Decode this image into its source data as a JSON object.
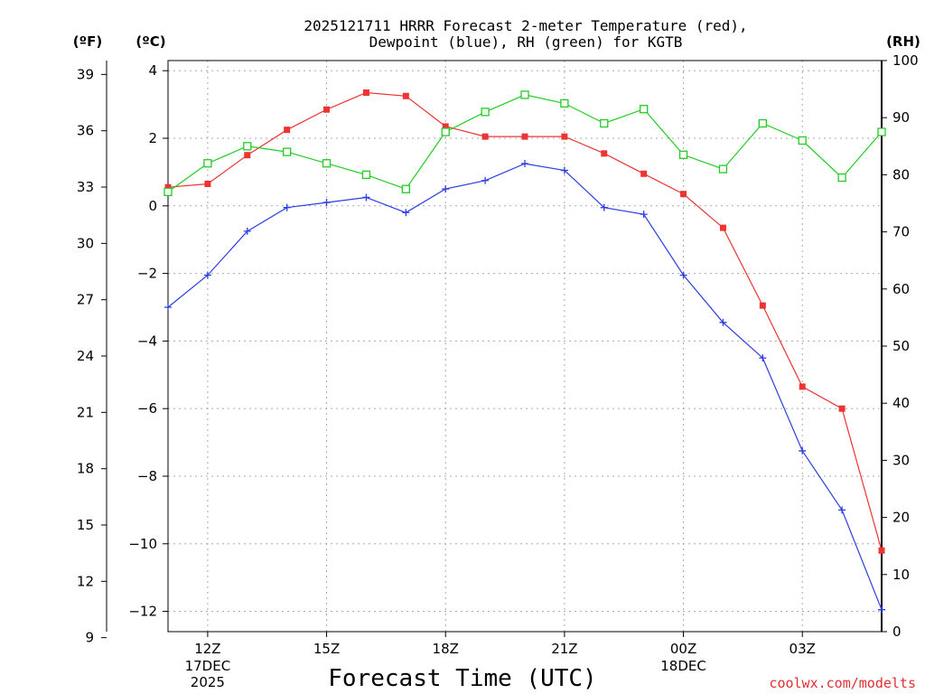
{
  "chart_data": {
    "type": "line",
    "title_line1": "2025121711 HRRR Forecast 2-meter Temperature (red),",
    "title_line2": "Dewpoint (blue), RH (green) for KGTB",
    "xlabel": "Forecast Time (UTC)",
    "credit": "coolwx.com/modelts",
    "units": {
      "fahrenheit": "(ºF)",
      "celsius": "(ºC)",
      "rh": "(RH)"
    },
    "x_hours": [
      11,
      12,
      13,
      14,
      15,
      16,
      17,
      18,
      19,
      20,
      21,
      22,
      23,
      24,
      25,
      26,
      27,
      28,
      29
    ],
    "x_range": [
      11,
      29
    ],
    "x_ticks": [
      {
        "hour": 12,
        "label": "12Z",
        "sub1": "17DEC",
        "sub2": "2025"
      },
      {
        "hour": 15,
        "label": "15Z",
        "sub1": "",
        "sub2": ""
      },
      {
        "hour": 18,
        "label": "18Z",
        "sub1": "",
        "sub2": ""
      },
      {
        "hour": 21,
        "label": "21Z",
        "sub1": "",
        "sub2": ""
      },
      {
        "hour": 24,
        "label": "00Z",
        "sub1": "18DEC",
        "sub2": ""
      },
      {
        "hour": 27,
        "label": "03Z",
        "sub1": "",
        "sub2": ""
      }
    ],
    "celsius_range": [
      -12.6,
      4.3
    ],
    "celsius_ticks": [
      "4",
      "2",
      "0",
      "−2",
      "−4",
      "−6",
      "−8",
      "−10",
      "−12"
    ],
    "celsius_tick_values": [
      4,
      2,
      0,
      -2,
      -4,
      -6,
      -8,
      -10,
      -12
    ],
    "fahrenheit_ticks": [
      "39",
      "36",
      "33",
      "30",
      "27",
      "24",
      "21",
      "18",
      "15",
      "12",
      "9"
    ],
    "fahrenheit_tick_values": [
      39,
      36,
      33,
      30,
      27,
      24,
      21,
      18,
      15,
      12,
      9
    ],
    "rh_range": [
      0,
      100
    ],
    "rh_ticks": [
      "100",
      "90",
      "80",
      "70",
      "60",
      "50",
      "40",
      "30",
      "20",
      "10",
      "0"
    ],
    "rh_tick_values": [
      100,
      90,
      80,
      70,
      60,
      50,
      40,
      30,
      20,
      10,
      0
    ],
    "series": [
      {
        "name": "Temperature",
        "axis": "celsius",
        "color": "#ee3333",
        "marker": "filled-square",
        "values": [
          0.55,
          0.65,
          1.5,
          2.25,
          2.85,
          3.35,
          3.25,
          2.35,
          2.05,
          2.05,
          2.05,
          1.55,
          0.95,
          0.35,
          -0.65,
          -2.95,
          -5.35,
          -6.0,
          -10.2
        ]
      },
      {
        "name": "Dewpoint",
        "axis": "celsius",
        "color": "#2a3fe0",
        "marker": "plus",
        "values": [
          -3.0,
          -2.05,
          -0.75,
          -0.05,
          0.1,
          0.25,
          -0.2,
          0.5,
          0.75,
          1.25,
          1.05,
          -0.05,
          -0.25,
          -2.05,
          -3.45,
          -4.5,
          -7.25,
          -9.0,
          -11.95
        ]
      },
      {
        "name": "RH",
        "axis": "rh",
        "color": "#22cc22",
        "marker": "open-square",
        "values": [
          77,
          82,
          85,
          84,
          82,
          80,
          77.5,
          87.5,
          91,
          94,
          92.5,
          89,
          91.5,
          83.5,
          81,
          89,
          86,
          79.5,
          87.5
        ]
      }
    ]
  }
}
